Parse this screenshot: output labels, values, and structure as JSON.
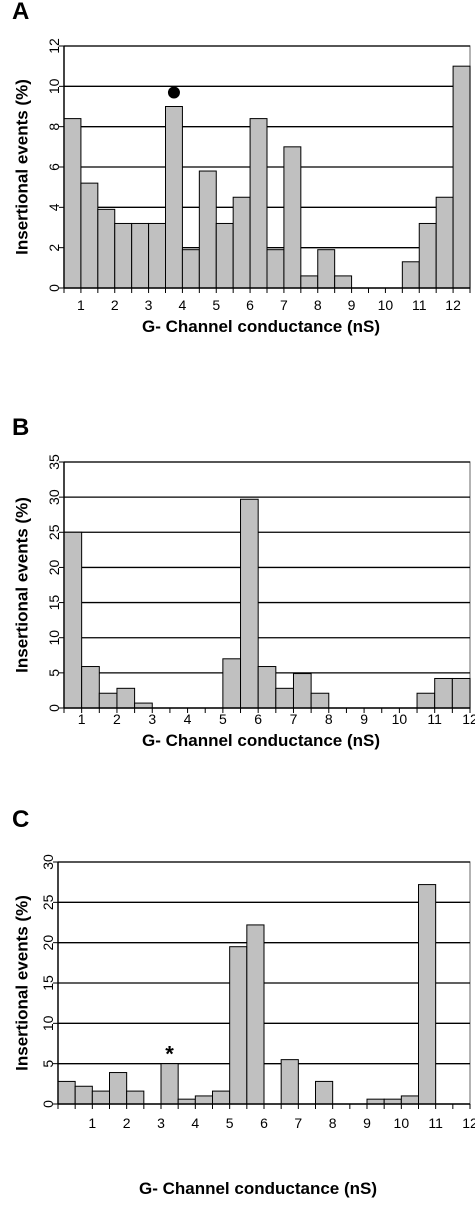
{
  "chart_data": [
    {
      "type": "bar",
      "panel_label": "A",
      "xlabel": "G- Channel conductance (nS)",
      "ylabel": "Insertional events (%)",
      "ylim": [
        0,
        12
      ],
      "yticks": [
        "0",
        "2",
        "4",
        "6",
        "8",
        "10",
        "12"
      ],
      "xtick_labels": [
        "1",
        "2",
        "3",
        "4",
        "5",
        "6",
        "7",
        "8",
        "9",
        "10",
        "11",
        "12"
      ],
      "grid": "horizontal",
      "bar_color": "#c0c0c0",
      "values": [
        8.4,
        5.2,
        3.9,
        3.2,
        3.2,
        3.2,
        9.0,
        1.9,
        5.8,
        3.2,
        4.5,
        8.4,
        1.9,
        7.0,
        0.6,
        1.9,
        0.6,
        0,
        0,
        0,
        1.3,
        3.2,
        4.5,
        11.0
      ],
      "annotations": [
        {
          "symbol": "●",
          "bar_index": 6
        }
      ]
    },
    {
      "type": "bar",
      "panel_label": "B",
      "xlabel": "G- Channel conductance (nS)",
      "ylabel": "Insertional events (%)",
      "ylim": [
        0,
        35
      ],
      "yticks": [
        "0",
        "5",
        "10",
        "15",
        "20",
        "25",
        "30",
        "35"
      ],
      "xtick_labels": [
        "1",
        "2",
        "3",
        "4",
        "5",
        "6",
        "7",
        "8",
        "9",
        "10",
        "11",
        "12"
      ],
      "grid": "horizontal",
      "bar_color": "#c0c0c0",
      "values": [
        25,
        5.9,
        2.1,
        2.8,
        0.7,
        0,
        0,
        0,
        0,
        7.0,
        29.7,
        5.9,
        2.8,
        4.9,
        2.1,
        0,
        0,
        0,
        0,
        0,
        2.1,
        4.2,
        4.2
      ],
      "annotations": []
    },
    {
      "type": "bar",
      "panel_label": "C",
      "xlabel": "G- Channel conductance (nS)",
      "ylabel": "Insertional events (%)",
      "ylim": [
        0,
        30
      ],
      "yticks": [
        "0",
        "5",
        "10",
        "15",
        "20",
        "25",
        "30"
      ],
      "xtick_labels": [
        "1",
        "2",
        "3",
        "4",
        "5",
        "6",
        "7",
        "8",
        "9",
        "10",
        "11",
        "12"
      ],
      "grid": "horizontal",
      "bar_color": "#c0c0c0",
      "values": [
        2.8,
        2.2,
        1.6,
        3.9,
        1.6,
        0,
        5.0,
        0.6,
        1.0,
        1.6,
        19.5,
        22.2,
        0,
        5.5,
        0,
        2.8,
        0,
        0,
        0.6,
        0.6,
        1.0,
        27.2,
        0,
        0
      ],
      "annotations": [
        {
          "symbol": "*",
          "bar_index": 6
        }
      ]
    }
  ]
}
